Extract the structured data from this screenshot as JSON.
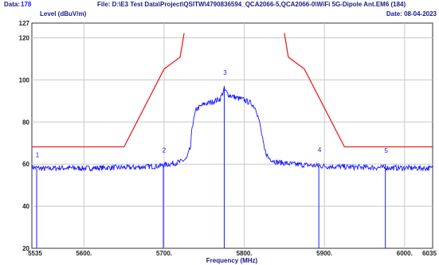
{
  "header": {
    "data_label": "Data:",
    "data_value": "178",
    "file_text": "File: D:\\E3 Test Data\\Project\\QSITW\\4790836594_QCA2066-5,QCA2066-0\\WiFi 5G-Dipole Ant.EM6  (184)",
    "date_text": "Date: 08-04-2023"
  },
  "colors": {
    "background": "#ffffff",
    "grid": "#c8c8c8",
    "limit_line": "#e8231f",
    "trace": "#1a1aff",
    "marker": "#1a1aff",
    "axis_text": "#1a1a8c",
    "frame": "#333333"
  },
  "chart_data": {
    "type": "line",
    "title": "",
    "ylabel": "Level (dBuV/m)",
    "xlabel": "Frequency (MHz)",
    "xlim": [
      5535,
      6035
    ],
    "ylim": [
      20,
      127
    ],
    "x_tick_labels": [
      "5535",
      "5600.",
      "5700.",
      "5800.",
      "5900.",
      "6000.",
      "6035"
    ],
    "x_tick_values": [
      5535,
      5600,
      5700,
      5800,
      5900,
      6000,
      6035
    ],
    "y_tick_values": [
      20,
      40,
      60,
      80,
      100,
      120,
      127
    ],
    "grid": true,
    "series": [
      {
        "kind": "limit",
        "x": [
          5535,
          5650,
          5700,
          5720,
          5725
        ],
        "y": [
          68.2,
          68.2,
          105.2,
          110.8,
          122.2
        ]
      },
      {
        "kind": "limit",
        "x": [
          5850,
          5855,
          5875,
          5925,
          6035
        ],
        "y": [
          122.2,
          110.8,
          105.2,
          68.2,
          68.2
        ]
      },
      {
        "kind": "trace",
        "x": [
          5535,
          5550,
          5570,
          5600,
          5630,
          5660,
          5690,
          5700,
          5710,
          5720,
          5728,
          5733,
          5735,
          5740,
          5750,
          5760,
          5770,
          5775,
          5780,
          5790,
          5800,
          5810,
          5815,
          5820,
          5825,
          5830,
          5840,
          5860,
          5880,
          5900,
          5930,
          5960,
          6000,
          6035
        ],
        "y": [
          58.5,
          57.8,
          58.2,
          58.0,
          58.3,
          58.4,
          59.0,
          59.5,
          60.2,
          61.0,
          62.5,
          68.0,
          78.0,
          86.0,
          88.5,
          89.5,
          91.0,
          95.5,
          93.0,
          91.5,
          90.5,
          88.5,
          86.0,
          78.0,
          67.0,
          63.0,
          61.0,
          60.0,
          59.5,
          59.0,
          58.6,
          58.4,
          58.2,
          58.0
        ]
      }
    ],
    "markers": [
      {
        "label": "1",
        "x": 5541,
        "y": 58.0
      },
      {
        "label": "2",
        "x": 5699,
        "y": 60.2
      },
      {
        "label": "3",
        "x": 5775,
        "y": 97.2
      },
      {
        "label": "4",
        "x": 5893,
        "y": 60.5
      },
      {
        "label": "5",
        "x": 5976,
        "y": 60.0
      }
    ]
  }
}
